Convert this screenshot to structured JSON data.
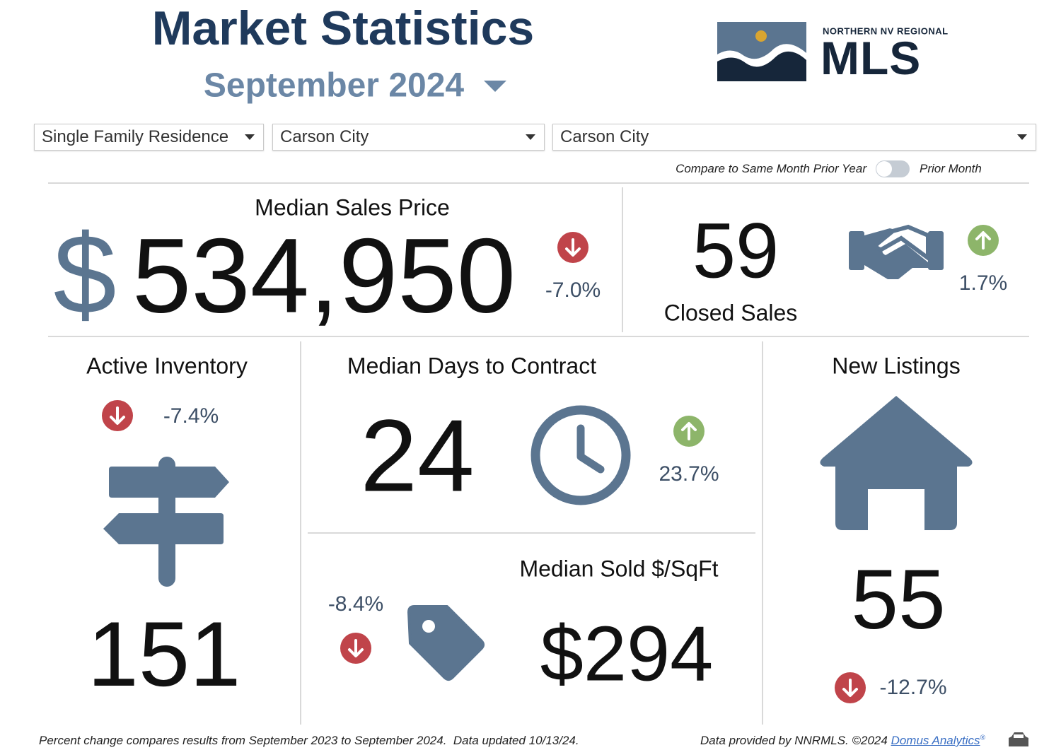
{
  "header": {
    "title": "Market Statistics",
    "period": "September 2024"
  },
  "logo": {
    "tagline": "NORTHERN NV REGIONAL",
    "name": "MLS"
  },
  "filters": [
    "Single Family Residence",
    "Carson City",
    "Carson City"
  ],
  "toggle": {
    "left": "Compare to Same Month Prior Year",
    "right": "Prior Month"
  },
  "metrics": {
    "median_sales_price": {
      "label": "Median Sales Price",
      "currency": "$",
      "value": "534,950",
      "change": "-7.0%",
      "direction": "down"
    },
    "closed_sales": {
      "label": "Closed Sales",
      "value": "59",
      "change": "1.7%",
      "direction": "up"
    },
    "active_inventory": {
      "label": "Active Inventory",
      "value": "151",
      "change": "-7.4%",
      "direction": "down"
    },
    "median_days_to_contract": {
      "label": "Median Days to Contract",
      "value": "24",
      "change": "23.7%",
      "direction": "up"
    },
    "median_sold_per_sqft": {
      "label": "Median Sold $/SqFt",
      "value": "$294",
      "change": "-8.4%",
      "direction": "down"
    },
    "new_listings": {
      "label": "New Listings",
      "value": "55",
      "change": "-12.7%",
      "direction": "down"
    }
  },
  "footer": {
    "note": "Percent change compares results from September 2023 to September 2024.  Data updated 10/13/24.",
    "credit": "Data provided by NNRMLS. ©2024",
    "link": "Domus Analytics",
    "mark": "®"
  }
}
